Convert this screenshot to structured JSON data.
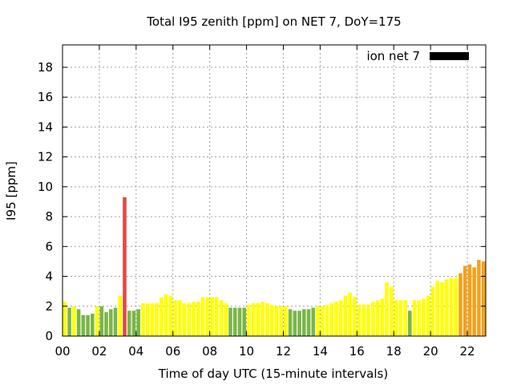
{
  "chart_data": {
    "type": "bar",
    "title": "Total I95 zenith [ppm] on NET 7, DoY=175",
    "xlabel": "Time of day UTC (15-minute intervals)",
    "ylabel": "I95 [ppm]",
    "xlim": [
      0,
      23
    ],
    "ylim": [
      0,
      19.5
    ],
    "grid": true,
    "legend": {
      "position": "top-right",
      "label": "ion net 7",
      "color": "#000000"
    },
    "x_ticks": [
      0,
      2,
      4,
      6,
      8,
      10,
      12,
      14,
      16,
      18,
      20,
      22
    ],
    "x_tick_labels": [
      "00",
      "02",
      "04",
      "06",
      "08",
      "10",
      "12",
      "14",
      "16",
      "18",
      "20",
      "22"
    ],
    "y_ticks": [
      0,
      2,
      4,
      6,
      8,
      10,
      12,
      14,
      16,
      18
    ],
    "y_tick_labels": [
      "0",
      "2",
      "4",
      "6",
      "8",
      "10",
      "12",
      "14",
      "16",
      "18"
    ],
    "bar_width_hours": 0.2,
    "color_scale": {
      "green": "#7ab648",
      "yellow": "#ffff00",
      "orange": "#f4a11a",
      "red": "#e84545"
    },
    "x": [
      0.125,
      0.375,
      0.625,
      0.875,
      1.125,
      1.375,
      1.625,
      1.875,
      2.125,
      2.375,
      2.625,
      2.875,
      3.125,
      3.375,
      3.625,
      3.875,
      4.125,
      4.375,
      4.625,
      4.875,
      5.125,
      5.375,
      5.625,
      5.875,
      6.125,
      6.375,
      6.625,
      6.875,
      7.125,
      7.375,
      7.625,
      7.875,
      8.125,
      8.375,
      8.625,
      8.875,
      9.125,
      9.375,
      9.625,
      9.875,
      10.125,
      10.375,
      10.625,
      10.875,
      11.125,
      11.375,
      11.625,
      11.875,
      12.125,
      12.375,
      12.625,
      12.875,
      13.125,
      13.375,
      13.625,
      13.875,
      14.125,
      14.375,
      14.625,
      14.875,
      15.125,
      15.375,
      15.625,
      15.875,
      16.125,
      16.375,
      16.625,
      16.875,
      17.125,
      17.375,
      17.625,
      17.875,
      18.125,
      18.375,
      18.625,
      18.875,
      19.125,
      19.375,
      19.625,
      19.875,
      20.125,
      20.375,
      20.625,
      20.875,
      21.125,
      21.375,
      21.625,
      21.875,
      22.125,
      22.375,
      22.625,
      22.875
    ],
    "values": [
      2.3,
      1.9,
      2.0,
      1.8,
      1.4,
      1.4,
      1.5,
      2.0,
      2.0,
      1.6,
      1.8,
      1.9,
      2.7,
      9.3,
      1.7,
      1.7,
      1.8,
      2.2,
      2.2,
      2.2,
      2.2,
      2.6,
      2.8,
      2.7,
      2.4,
      2.4,
      2.2,
      2.2,
      2.3,
      2.3,
      2.6,
      2.6,
      2.6,
      2.6,
      2.4,
      2.2,
      1.9,
      1.9,
      1.9,
      1.9,
      2.1,
      2.2,
      2.2,
      2.3,
      2.2,
      2.1,
      2.0,
      2.0,
      2.0,
      1.8,
      1.7,
      1.7,
      1.8,
      1.8,
      1.9,
      2.0,
      2.0,
      2.1,
      2.2,
      2.3,
      2.4,
      2.7,
      2.9,
      2.6,
      2.1,
      2.1,
      2.1,
      2.3,
      2.4,
      2.5,
      3.6,
      3.3,
      2.4,
      2.4,
      2.4,
      1.7,
      2.4,
      2.4,
      2.5,
      2.7,
      3.3,
      3.7,
      3.6,
      3.8,
      3.9,
      3.9,
      4.2,
      4.7,
      4.8,
      4.6,
      5.1,
      5.0
    ],
    "colors": [
      "yellow",
      "green",
      "yellow",
      "green",
      "green",
      "green",
      "green",
      "yellow",
      "green",
      "green",
      "green",
      "green",
      "yellow",
      "red",
      "green",
      "green",
      "green",
      "yellow",
      "yellow",
      "yellow",
      "yellow",
      "yellow",
      "yellow",
      "yellow",
      "yellow",
      "yellow",
      "yellow",
      "yellow",
      "yellow",
      "yellow",
      "yellow",
      "yellow",
      "yellow",
      "yellow",
      "yellow",
      "yellow",
      "green",
      "green",
      "green",
      "green",
      "yellow",
      "yellow",
      "yellow",
      "yellow",
      "yellow",
      "yellow",
      "yellow",
      "yellow",
      "yellow",
      "green",
      "green",
      "green",
      "green",
      "green",
      "green",
      "yellow",
      "yellow",
      "yellow",
      "yellow",
      "yellow",
      "yellow",
      "yellow",
      "yellow",
      "yellow",
      "yellow",
      "yellow",
      "yellow",
      "yellow",
      "yellow",
      "yellow",
      "yellow",
      "yellow",
      "yellow",
      "yellow",
      "yellow",
      "green",
      "yellow",
      "yellow",
      "yellow",
      "yellow",
      "yellow",
      "yellow",
      "yellow",
      "yellow",
      "yellow",
      "yellow",
      "orange",
      "orange",
      "orange",
      "orange",
      "orange",
      "orange"
    ]
  }
}
